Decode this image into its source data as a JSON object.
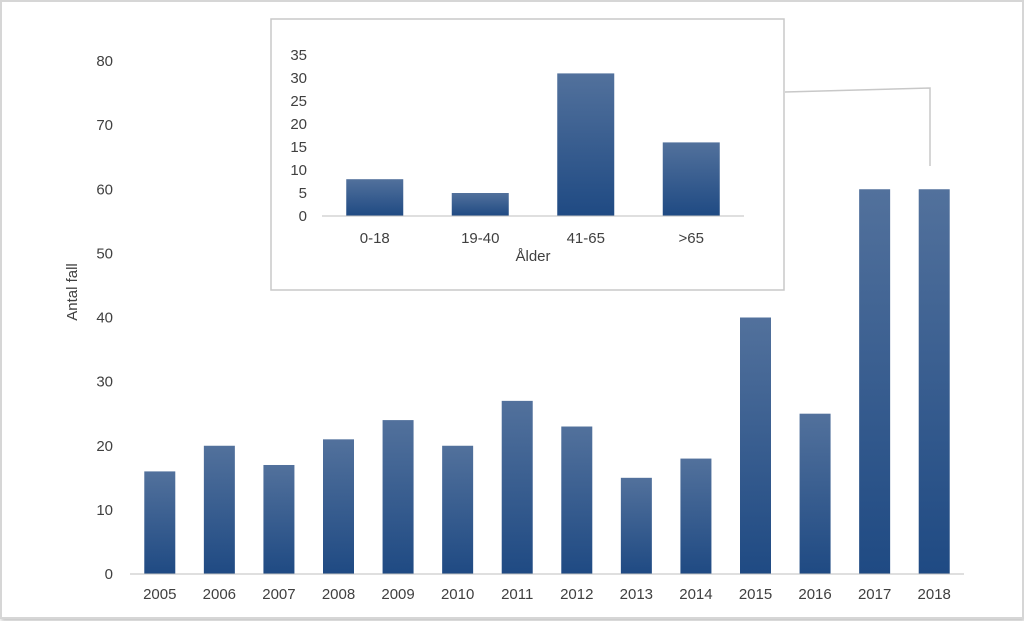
{
  "chart_data": [
    {
      "type": "bar",
      "categories": [
        "2005",
        "2006",
        "2007",
        "2008",
        "2009",
        "2010",
        "2011",
        "2012",
        "2013",
        "2014",
        "2015",
        "2016",
        "2017",
        "2018"
      ],
      "values": [
        16,
        20,
        17,
        21,
        24,
        20,
        27,
        23,
        15,
        18,
        40,
        25,
        60,
        60
      ],
      "title": "",
      "xlabel": "",
      "ylabel": "Antal fall",
      "ylim": [
        0,
        80
      ],
      "yticks": [
        0,
        10,
        20,
        30,
        40,
        50,
        60,
        70,
        80
      ],
      "grid": false,
      "bar_color_top": "#52719c",
      "bar_color_bottom": "#1f4a83"
    },
    {
      "type": "bar",
      "inset_of_category": "2018",
      "categories": [
        "0-18",
        "19-40",
        "41-65",
        ">65"
      ],
      "values": [
        8,
        5,
        31,
        16
      ],
      "title": "",
      "xlabel": "Ålder",
      "ylabel": "",
      "ylim": [
        0,
        35
      ],
      "yticks": [
        0,
        5,
        10,
        15,
        20,
        25,
        30,
        35
      ],
      "grid": false,
      "bar_color_top": "#52719c",
      "bar_color_bottom": "#1f4a83"
    }
  ]
}
